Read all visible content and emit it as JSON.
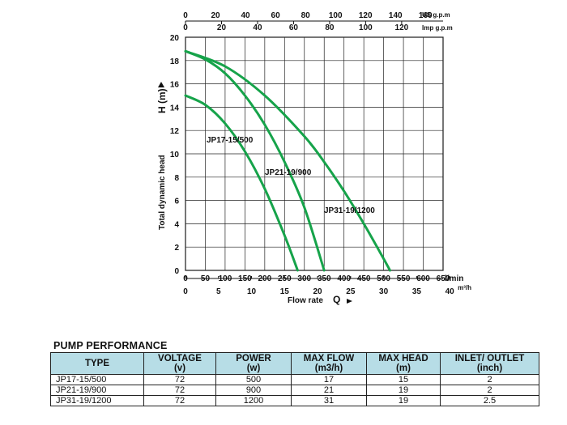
{
  "chart_data": {
    "type": "line",
    "xlabel": "Flow rate",
    "xlabel_symbol": "Q",
    "ylabel": "Total dynamic head",
    "ylabel_symbol": "H (m)",
    "x_unit": "l/min",
    "xlim": [
      0,
      650
    ],
    "ylim": [
      0,
      20
    ],
    "x_ticks": [
      "0",
      "50",
      "100",
      "150",
      "200",
      "250",
      "300",
      "350",
      "400",
      "450",
      "500",
      "550",
      "600",
      "650"
    ],
    "y_ticks": [
      "0",
      "2",
      "4",
      "6",
      "8",
      "10",
      "12",
      "14",
      "16",
      "18",
      "20"
    ],
    "secondary_x_bottom": {
      "unit": "m³/h",
      "ticks": [
        "0",
        "5",
        "10",
        "15",
        "20",
        "25",
        "30",
        "35",
        "40"
      ]
    },
    "secondary_x_top_us": {
      "unit": "US g.p.m",
      "ticks": [
        "0",
        "20",
        "40",
        "60",
        "80",
        "100",
        "120",
        "140",
        "160"
      ]
    },
    "secondary_x_top_imp": {
      "unit": "Imp g.p.m",
      "ticks": [
        "0",
        "20",
        "40",
        "60",
        "80",
        "100",
        "120"
      ]
    },
    "grid": true,
    "curve_color": "#16a34a",
    "series": [
      {
        "name": "JP17-15/500",
        "x": [
          0,
          50,
          100,
          150,
          200,
          250,
          283
        ],
        "y": [
          15,
          14.2,
          12.6,
          10.2,
          7.0,
          3.0,
          0
        ]
      },
      {
        "name": "JP21-19/900",
        "x": [
          0,
          50,
          100,
          150,
          200,
          250,
          300,
          350
        ],
        "y": [
          18.8,
          18.1,
          16.9,
          15.0,
          12.5,
          9.3,
          5.4,
          0
        ]
      },
      {
        "name": "JP31-19/1200",
        "x": [
          0,
          100,
          200,
          300,
          350,
          400,
          450,
          500,
          516
        ],
        "y": [
          18.8,
          17.5,
          15.0,
          11.5,
          9.3,
          6.8,
          4.0,
          1.0,
          0
        ]
      }
    ]
  },
  "performance": {
    "title": "PUMP PERFORMANCE",
    "headers": [
      [
        "TYPE",
        ""
      ],
      [
        "VOLTAGE",
        "(v)"
      ],
      [
        "POWER",
        "(w)"
      ],
      [
        "MAX FLOW",
        "(m3/h)"
      ],
      [
        "MAX HEAD",
        "(m)"
      ],
      [
        "INLET/  OUTLET",
        "(inch)"
      ]
    ],
    "rows": [
      [
        "JP17-15/500",
        "72",
        "500",
        "17",
        "15",
        "2"
      ],
      [
        "JP21-19/900",
        "72",
        "900",
        "21",
        "19",
        "2"
      ],
      [
        "JP31-19/1200",
        "72",
        "1200",
        "31",
        "19",
        "2.5"
      ]
    ]
  }
}
